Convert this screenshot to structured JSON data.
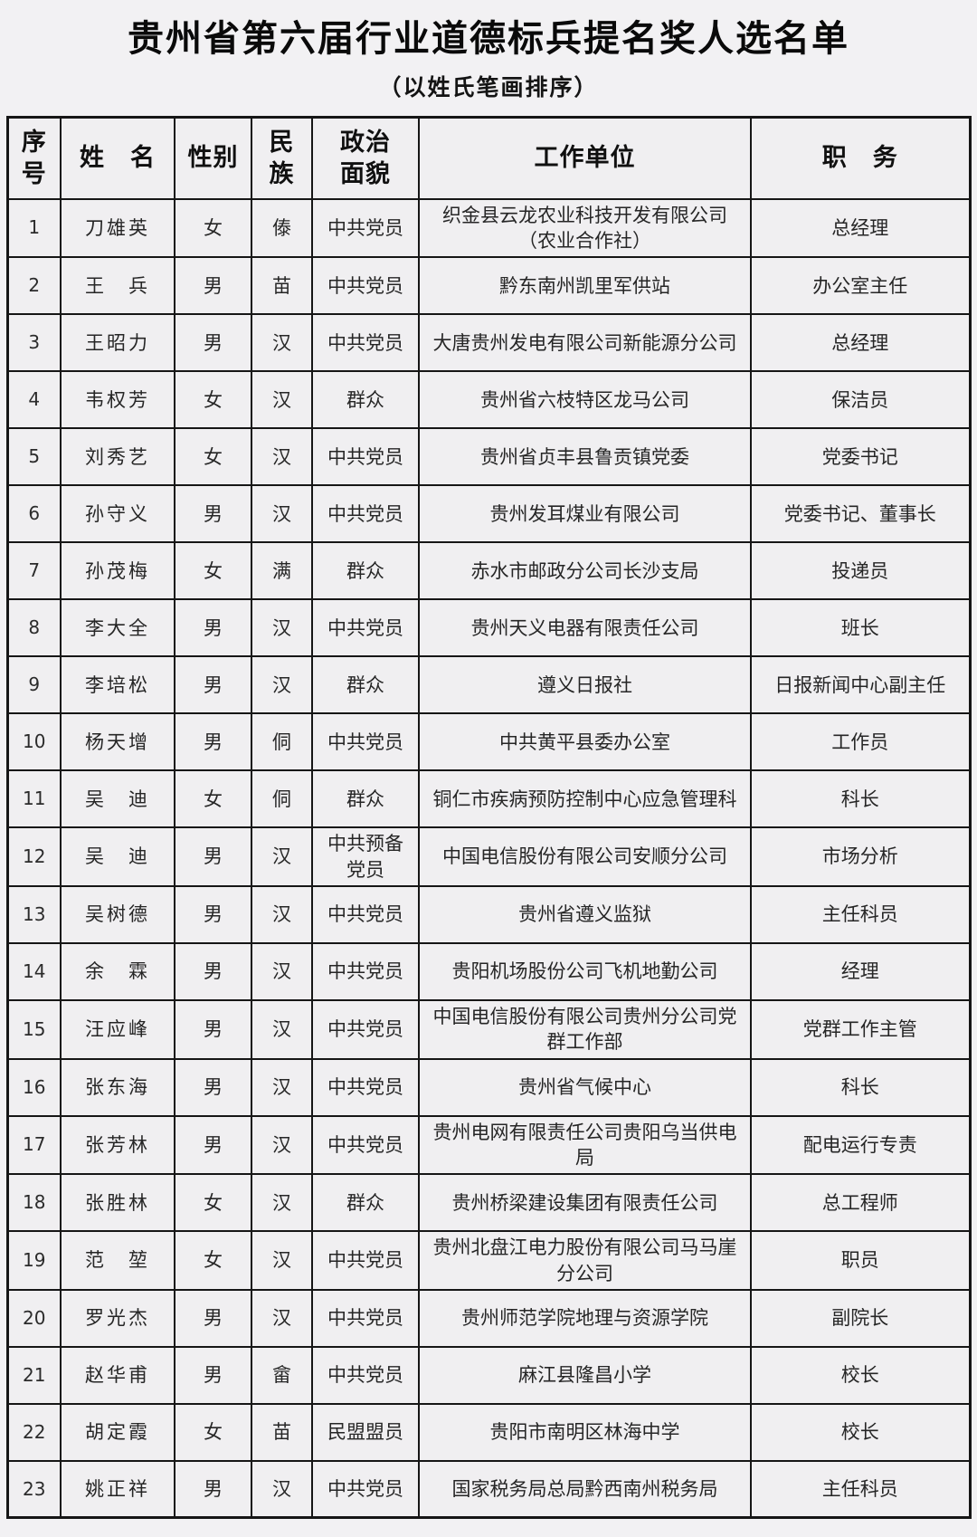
{
  "page": {
    "title": "贵州省第六届行业道德标兵提名奖人选名单",
    "subtitle": "（以姓氏笔画排序）"
  },
  "table": {
    "headers": [
      "序\n号",
      "姓　名",
      "性别",
      "民\n族",
      "政治\n面貌",
      "工作单位",
      "职　务"
    ],
    "rows": [
      {
        "no": "1",
        "name": "刀雄英",
        "gender": "女",
        "ethnicity": "傣",
        "political_status": "中共党员",
        "work_unit": "织金县云龙农业科技开发有限公司（农业合作社）",
        "position": "总经理"
      },
      {
        "no": "2",
        "name": "王　兵",
        "gender": "男",
        "ethnicity": "苗",
        "political_status": "中共党员",
        "work_unit": "黔东南州凯里军供站",
        "position": "办公室主任"
      },
      {
        "no": "3",
        "name": "王昭力",
        "gender": "男",
        "ethnicity": "汉",
        "political_status": "中共党员",
        "work_unit": "大唐贵州发电有限公司新能源分公司",
        "position": "总经理"
      },
      {
        "no": "4",
        "name": "韦权芳",
        "gender": "女",
        "ethnicity": "汉",
        "political_status": "群众",
        "work_unit": "贵州省六枝特区龙马公司",
        "position": "保洁员"
      },
      {
        "no": "5",
        "name": "刘秀艺",
        "gender": "女",
        "ethnicity": "汉",
        "political_status": "中共党员",
        "work_unit": "贵州省贞丰县鲁贡镇党委",
        "position": "党委书记"
      },
      {
        "no": "6",
        "name": "孙守义",
        "gender": "男",
        "ethnicity": "汉",
        "political_status": "中共党员",
        "work_unit": "贵州发耳煤业有限公司",
        "position": "党委书记、董事长"
      },
      {
        "no": "7",
        "name": "孙茂梅",
        "gender": "女",
        "ethnicity": "满",
        "political_status": "群众",
        "work_unit": "赤水市邮政分公司长沙支局",
        "position": "投递员"
      },
      {
        "no": "8",
        "name": "李大全",
        "gender": "男",
        "ethnicity": "汉",
        "political_status": "中共党员",
        "work_unit": "贵州天义电器有限责任公司",
        "position": "班长"
      },
      {
        "no": "9",
        "name": "李培松",
        "gender": "男",
        "ethnicity": "汉",
        "political_status": "群众",
        "work_unit": "遵义日报社",
        "position": "日报新闻中心副主任"
      },
      {
        "no": "10",
        "name": "杨天增",
        "gender": "男",
        "ethnicity": "侗",
        "political_status": "中共党员",
        "work_unit": "中共黄平县委办公室",
        "position": "工作员"
      },
      {
        "no": "11",
        "name": "吴　迪",
        "gender": "女",
        "ethnicity": "侗",
        "political_status": "群众",
        "work_unit": "铜仁市疾病预防控制中心应急管理科",
        "position": "科长"
      },
      {
        "no": "12",
        "name": "吴　迪",
        "gender": "男",
        "ethnicity": "汉",
        "political_status": "中共预备党员",
        "work_unit": "中国电信股份有限公司安顺分公司",
        "position": "市场分析"
      },
      {
        "no": "13",
        "name": "吴树德",
        "gender": "男",
        "ethnicity": "汉",
        "political_status": "中共党员",
        "work_unit": "贵州省遵义监狱",
        "position": "主任科员"
      },
      {
        "no": "14",
        "name": "余　霖",
        "gender": "男",
        "ethnicity": "汉",
        "political_status": "中共党员",
        "work_unit": "贵阳机场股份公司飞机地勤公司",
        "position": "经理"
      },
      {
        "no": "15",
        "name": "汪应峰",
        "gender": "男",
        "ethnicity": "汉",
        "political_status": "中共党员",
        "work_unit": "中国电信股份有限公司贵州分公司党群工作部",
        "position": "党群工作主管"
      },
      {
        "no": "16",
        "name": "张东海",
        "gender": "男",
        "ethnicity": "汉",
        "political_status": "中共党员",
        "work_unit": "贵州省气候中心",
        "position": "科长"
      },
      {
        "no": "17",
        "name": "张芳林",
        "gender": "男",
        "ethnicity": "汉",
        "political_status": "中共党员",
        "work_unit": "贵州电网有限责任公司贵阳乌当供电局",
        "position": "配电运行专责"
      },
      {
        "no": "18",
        "name": "张胜林",
        "gender": "女",
        "ethnicity": "汉",
        "political_status": "群众",
        "work_unit": "贵州桥梁建设集团有限责任公司",
        "position": "总工程师"
      },
      {
        "no": "19",
        "name": "范　堃",
        "gender": "女",
        "ethnicity": "汉",
        "political_status": "中共党员",
        "work_unit": "贵州北盘江电力股份有限公司马马崖分公司",
        "position": "职员"
      },
      {
        "no": "20",
        "name": "罗光杰",
        "gender": "男",
        "ethnicity": "汉",
        "political_status": "中共党员",
        "work_unit": "贵州师范学院地理与资源学院",
        "position": "副院长"
      },
      {
        "no": "21",
        "name": "赵华甫",
        "gender": "男",
        "ethnicity": "畲",
        "political_status": "中共党员",
        "work_unit": "麻江县隆昌小学",
        "position": "校长"
      },
      {
        "no": "22",
        "name": "胡定霞",
        "gender": "女",
        "ethnicity": "苗",
        "political_status": "民盟盟员",
        "work_unit": "贵阳市南明区林海中学",
        "position": "校长"
      },
      {
        "no": "23",
        "name": "姚正祥",
        "gender": "男",
        "ethnicity": "汉",
        "political_status": "中共党员",
        "work_unit": "国家税务局总局黔西南州税务局",
        "position": "主任科员"
      }
    ]
  }
}
